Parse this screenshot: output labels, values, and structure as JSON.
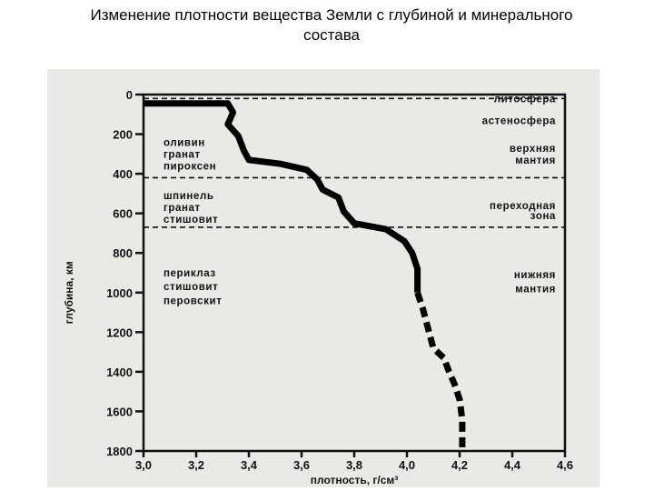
{
  "page": {
    "title_line1": "Изменение плотности вещества Земли с глубиной и минерального",
    "title_line2": "состава"
  },
  "chart_data": {
    "type": "line",
    "title": "",
    "xlabel": "плотность, г/см³",
    "ylabel": "глубина, км",
    "xlim": [
      3.0,
      4.6
    ],
    "ylim": [
      0,
      1800
    ],
    "y_inverted": true,
    "x_ticks": [
      "3,0",
      "3,2",
      "3,4",
      "3,6",
      "3,8",
      "4,0",
      "4,2",
      "4,4",
      "4,6"
    ],
    "x_tick_values": [
      3.0,
      3.2,
      3.4,
      3.6,
      3.8,
      4.0,
      4.2,
      4.4,
      4.6
    ],
    "y_ticks": [
      "0",
      "200",
      "400",
      "600",
      "800",
      "1000",
      "1200",
      "1400",
      "1600",
      "1800"
    ],
    "y_tick_values": [
      0,
      200,
      400,
      600,
      800,
      1000,
      1200,
      1400,
      1600,
      1800
    ],
    "grid": false,
    "boundaries_km": [
      20,
      420,
      670
    ],
    "series": [
      {
        "line_style": "solid",
        "color": "#000000",
        "points": [
          [
            3.0,
            45
          ],
          [
            3.32,
            45
          ],
          [
            3.34,
            90
          ],
          [
            3.32,
            150
          ],
          [
            3.36,
            210
          ],
          [
            3.38,
            280
          ],
          [
            3.4,
            330
          ],
          [
            3.52,
            350
          ],
          [
            3.62,
            380
          ],
          [
            3.66,
            430
          ],
          [
            3.68,
            480
          ],
          [
            3.74,
            520
          ],
          [
            3.76,
            590
          ],
          [
            3.8,
            650
          ],
          [
            3.92,
            680
          ],
          [
            3.99,
            740
          ],
          [
            4.02,
            800
          ],
          [
            4.04,
            880
          ],
          [
            4.04,
            1000
          ]
        ]
      },
      {
        "line_style": "dashed",
        "color": "#000000",
        "points": [
          [
            4.04,
            1000
          ],
          [
            4.06,
            1080
          ],
          [
            4.08,
            1180
          ],
          [
            4.1,
            1280
          ],
          [
            4.14,
            1330
          ],
          [
            4.16,
            1400
          ],
          [
            4.18,
            1460
          ],
          [
            4.2,
            1540
          ],
          [
            4.21,
            1640
          ],
          [
            4.21,
            1800
          ]
        ]
      }
    ],
    "annotations": {
      "layers": [
        {
          "text": "литосфера",
          "depth": 20
        },
        {
          "text": "астеносфера",
          "depth": 130
        },
        {
          "text": "верхняя",
          "depth": 270
        },
        {
          "text": "мантия",
          "depth": 330
        },
        {
          "text": "переходная",
          "depth": 560
        },
        {
          "text": "зона",
          "depth": 610
        },
        {
          "text": "нижняя",
          "depth": 910
        },
        {
          "text": "мантия",
          "depth": 980
        }
      ],
      "minerals": [
        {
          "text": "оливин",
          "depth": 240
        },
        {
          "text": "гранат",
          "depth": 300
        },
        {
          "text": "пироксен",
          "depth": 360
        },
        {
          "text": "шпинель",
          "depth": 510
        },
        {
          "text": "гранат",
          "depth": 570
        },
        {
          "text": "стишовит",
          "depth": 630
        },
        {
          "text": "периклаз",
          "depth": 900
        },
        {
          "text": "стишовит",
          "depth": 970
        },
        {
          "text": "перовскит",
          "depth": 1040
        }
      ]
    }
  }
}
